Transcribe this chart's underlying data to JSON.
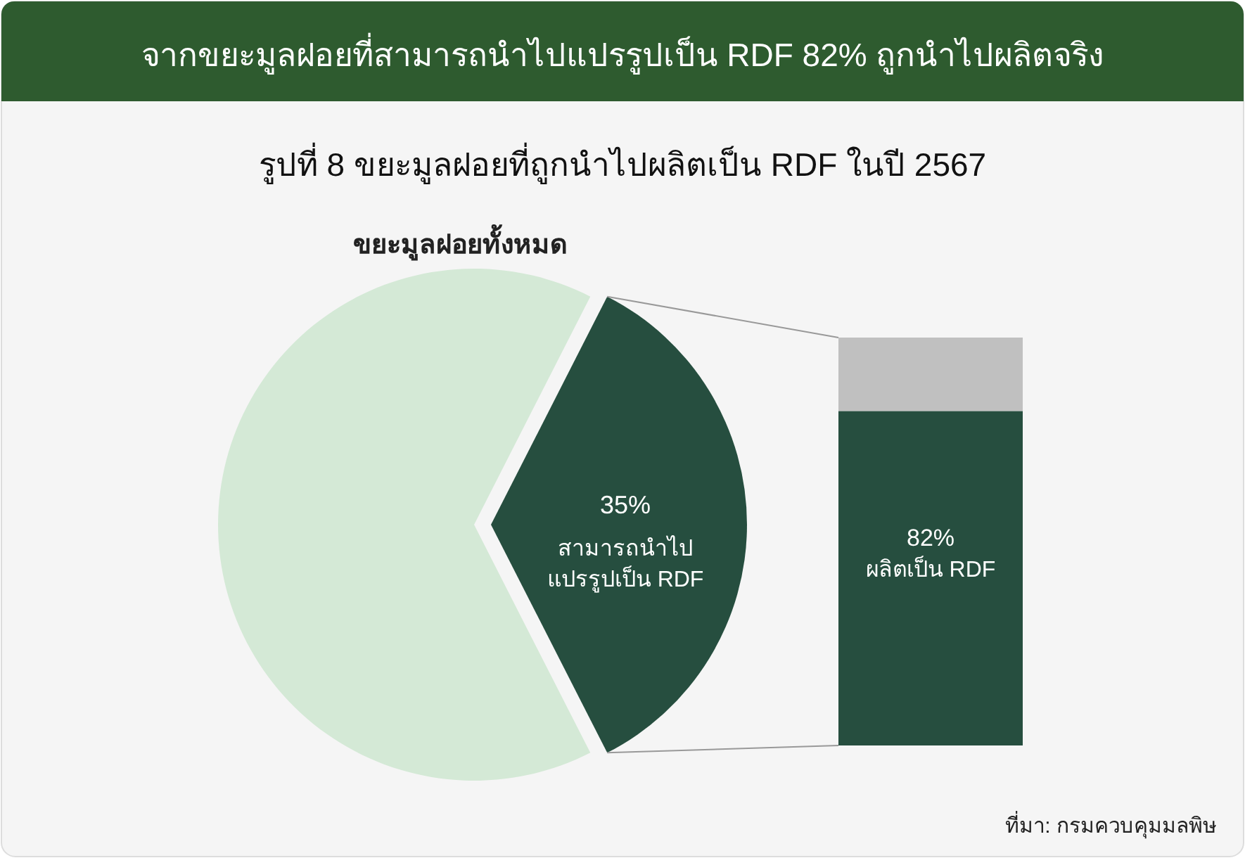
{
  "chart_data": [
    {
      "type": "pie",
      "title": "จากขยะมูลฝอยที่สามารถนำไปแปรรูปเป็น RDF 82% ถูกนำไปผลิตจริง",
      "subtitle": "รูปที่ 8 ขยะมูลฝอยที่ถูกนำไปผลิตเป็น RDF ในปี 2567",
      "categories": [
        null,
        "สามารถนำไปแปรรูปเป็น RDF"
      ],
      "values": [
        65,
        35
      ],
      "colors": [
        "#d4e9d6",
        "#264e3f"
      ],
      "value_labels": [
        null,
        "35%"
      ],
      "annotations": [
        "ขยะมูลฝอยทั้งหมด",
        "ที่มา: กรมควบคุมมลพิษ"
      ]
    },
    {
      "type": "bar",
      "stacked": true,
      "categories": [
        null
      ],
      "ylim": [
        0,
        100
      ],
      "series": [
        {
          "name": "ผลิตเป็น RDF",
          "color": "#264e3f",
          "values": [
            82
          ],
          "value_labels": [
            "82%"
          ]
        },
        {
          "color": "#c0c0c0",
          "values": [
            18
          ]
        }
      ]
    }
  ]
}
